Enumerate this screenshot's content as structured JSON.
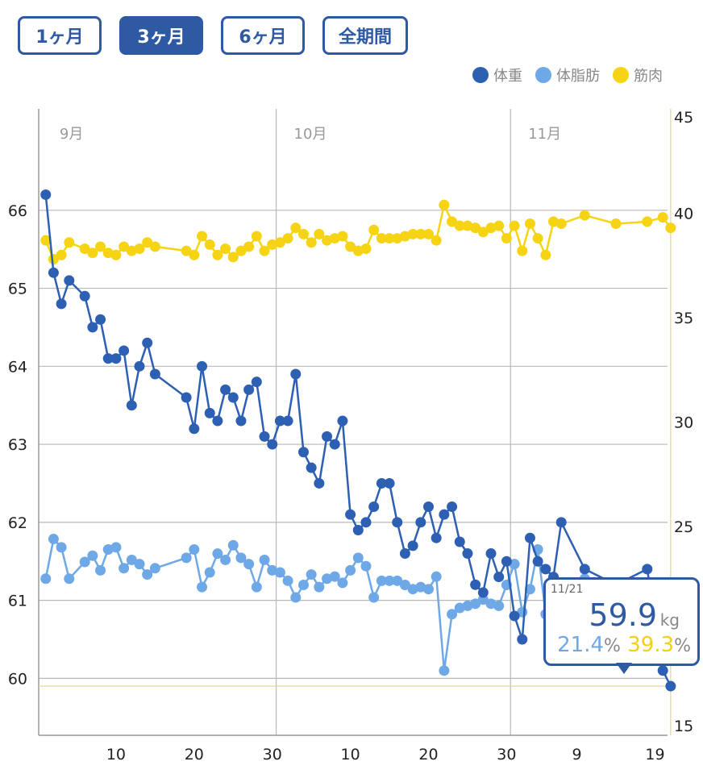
{
  "range_buttons": [
    {
      "label": "1ヶ月",
      "active": false
    },
    {
      "label": "3ヶ月",
      "active": true
    },
    {
      "label": "6ヶ月",
      "active": false
    },
    {
      "label": "全期間",
      "active": false
    }
  ],
  "legend": [
    {
      "label": "体重",
      "color": "#2d5fb3"
    },
    {
      "label": "体脂肪",
      "color": "#6fa8e6"
    },
    {
      "label": "筋肉",
      "color": "#f6d414"
    }
  ],
  "tooltip": {
    "date": "11/21",
    "weight": "59.9",
    "weight_unit": "kg",
    "fat": "21.4",
    "muscle": "39.3",
    "pct_unit": "%"
  },
  "chart_data": {
    "type": "line",
    "month_labels": [
      {
        "label": "9月",
        "day": 1
      },
      {
        "label": "10月",
        "day": 31
      },
      {
        "label": "11月",
        "day": 61
      }
    ],
    "x_tick_labels": [
      {
        "label": "10",
        "day": 10
      },
      {
        "label": "20",
        "day": 20
      },
      {
        "label": "30",
        "day": 30
      },
      {
        "label": "10",
        "day": 40
      },
      {
        "label": "20",
        "day": 50
      },
      {
        "label": "30",
        "day": 60
      },
      {
        "label": "9",
        "day": 69
      },
      {
        "label": "19",
        "day": 79
      }
    ],
    "x_range": [
      0.1,
      80.6
    ],
    "y_left": {
      "ticks": [
        60,
        61,
        62,
        63,
        64,
        65,
        66
      ],
      "range": [
        59.27,
        67.3
      ]
    },
    "y_right": {
      "ticks": [
        15,
        20,
        25,
        30,
        35,
        40,
        45
      ],
      "range": [
        15,
        45
      ]
    },
    "target_weight": 59.9,
    "series": [
      {
        "name": "体重",
        "axis": "left",
        "color": "#2d5fb3",
        "points": [
          [
            1,
            66.2
          ],
          [
            2,
            65.2
          ],
          [
            3,
            64.8
          ],
          [
            4,
            65.1
          ],
          [
            6,
            64.9
          ],
          [
            7,
            64.5
          ],
          [
            8,
            64.6
          ],
          [
            9,
            64.1
          ],
          [
            10,
            64.1
          ],
          [
            11,
            64.2
          ],
          [
            12,
            63.5
          ],
          [
            13,
            64.0
          ],
          [
            14,
            64.3
          ],
          [
            15,
            63.9
          ],
          [
            19,
            63.6
          ],
          [
            20,
            63.2
          ],
          [
            21,
            64.0
          ],
          [
            22,
            63.4
          ],
          [
            23,
            63.3
          ],
          [
            24,
            63.7
          ],
          [
            25,
            63.6
          ],
          [
            26,
            63.3
          ],
          [
            27,
            63.7
          ],
          [
            28,
            63.8
          ],
          [
            29,
            63.1
          ],
          [
            30,
            63.0
          ],
          [
            31,
            63.3
          ],
          [
            32,
            63.3
          ],
          [
            33,
            63.9
          ],
          [
            34,
            62.9
          ],
          [
            35,
            62.7
          ],
          [
            36,
            62.5
          ],
          [
            37,
            63.1
          ],
          [
            38,
            63.0
          ],
          [
            39,
            63.3
          ],
          [
            40,
            62.1
          ],
          [
            41,
            61.9
          ],
          [
            42,
            62.0
          ],
          [
            43,
            62.2
          ],
          [
            44,
            62.5
          ],
          [
            45,
            62.5
          ],
          [
            46,
            62.0
          ],
          [
            47,
            61.6
          ],
          [
            48,
            61.7
          ],
          [
            49,
            62.0
          ],
          [
            50,
            62.2
          ],
          [
            51,
            61.8
          ],
          [
            52,
            62.1
          ],
          [
            53,
            62.2
          ],
          [
            54,
            61.75
          ],
          [
            55,
            61.6
          ],
          [
            56,
            61.2
          ],
          [
            57,
            61.1
          ],
          [
            58,
            61.6
          ],
          [
            59,
            61.3
          ],
          [
            60,
            61.5
          ],
          [
            61,
            60.8
          ],
          [
            62,
            60.5
          ],
          [
            63,
            61.8
          ],
          [
            64,
            61.5
          ],
          [
            65,
            61.4
          ],
          [
            66,
            61.3
          ],
          [
            67,
            62.0
          ],
          [
            70,
            61.4
          ],
          [
            74,
            61.2
          ],
          [
            78,
            61.4
          ],
          [
            80,
            60.1
          ],
          [
            81,
            59.9
          ]
        ]
      },
      {
        "name": "体脂肪",
        "axis": "right",
        "color": "#6fa8e6",
        "points": [
          [
            1,
            22.5
          ],
          [
            2,
            24.4
          ],
          [
            3,
            24.0
          ],
          [
            4,
            22.5
          ],
          [
            6,
            23.3
          ],
          [
            7,
            23.6
          ],
          [
            8,
            22.9
          ],
          [
            9,
            23.9
          ],
          [
            10,
            24.0
          ],
          [
            11,
            23.0
          ],
          [
            12,
            23.4
          ],
          [
            13,
            23.2
          ],
          [
            14,
            22.7
          ],
          [
            15,
            23.0
          ],
          [
            19,
            23.5
          ],
          [
            20,
            23.9
          ],
          [
            21,
            22.1
          ],
          [
            22,
            22.8
          ],
          [
            23,
            23.7
          ],
          [
            24,
            23.4
          ],
          [
            25,
            24.1
          ],
          [
            26,
            23.5
          ],
          [
            27,
            23.2
          ],
          [
            28,
            22.1
          ],
          [
            29,
            23.4
          ],
          [
            30,
            22.9
          ],
          [
            31,
            22.8
          ],
          [
            32,
            22.4
          ],
          [
            33,
            21.6
          ],
          [
            34,
            22.2
          ],
          [
            35,
            22.7
          ],
          [
            36,
            22.1
          ],
          [
            37,
            22.5
          ],
          [
            38,
            22.6
          ],
          [
            39,
            22.3
          ],
          [
            40,
            22.9
          ],
          [
            41,
            23.5
          ],
          [
            42,
            23.1
          ],
          [
            43,
            21.6
          ],
          [
            44,
            22.4
          ],
          [
            45,
            22.4
          ],
          [
            46,
            22.4
          ],
          [
            47,
            22.2
          ],
          [
            48,
            22.0
          ],
          [
            49,
            22.1
          ],
          [
            50,
            22.0
          ],
          [
            51,
            22.6
          ],
          [
            52,
            18.1
          ],
          [
            53,
            20.8
          ],
          [
            54,
            21.1
          ],
          [
            55,
            21.2
          ],
          [
            56,
            21.3
          ],
          [
            57,
            21.5
          ],
          [
            58,
            21.3
          ],
          [
            59,
            21.2
          ],
          [
            60,
            22.2
          ],
          [
            61,
            23.2
          ],
          [
            62,
            20.9
          ],
          [
            63,
            22.0
          ],
          [
            64,
            23.9
          ],
          [
            65,
            20.8
          ],
          [
            66,
            21.0
          ],
          [
            67,
            21.0
          ],
          [
            70,
            22.5
          ],
          [
            74,
            21.5
          ],
          [
            78,
            21.5
          ],
          [
            80,
            21.4
          ],
          [
            81,
            21.4
          ]
        ]
      },
      {
        "name": "筋肉",
        "axis": "right",
        "color": "#f6d414",
        "points": [
          [
            1,
            38.7
          ],
          [
            2,
            37.8
          ],
          [
            3,
            38.0
          ],
          [
            4,
            38.6
          ],
          [
            6,
            38.3
          ],
          [
            7,
            38.1
          ],
          [
            8,
            38.4
          ],
          [
            9,
            38.1
          ],
          [
            10,
            38.0
          ],
          [
            11,
            38.4
          ],
          [
            12,
            38.2
          ],
          [
            13,
            38.3
          ],
          [
            14,
            38.6
          ],
          [
            15,
            38.4
          ],
          [
            19,
            38.2
          ],
          [
            20,
            38.0
          ],
          [
            21,
            38.9
          ],
          [
            22,
            38.5
          ],
          [
            23,
            38.0
          ],
          [
            24,
            38.3
          ],
          [
            25,
            37.9
          ],
          [
            26,
            38.2
          ],
          [
            27,
            38.4
          ],
          [
            28,
            38.9
          ],
          [
            29,
            38.2
          ],
          [
            30,
            38.5
          ],
          [
            31,
            38.6
          ],
          [
            32,
            38.8
          ],
          [
            33,
            39.3
          ],
          [
            34,
            39.0
          ],
          [
            35,
            38.6
          ],
          [
            36,
            39.0
          ],
          [
            37,
            38.7
          ],
          [
            38,
            38.8
          ],
          [
            39,
            38.9
          ],
          [
            40,
            38.4
          ],
          [
            41,
            38.2
          ],
          [
            42,
            38.3
          ],
          [
            43,
            39.2
          ],
          [
            44,
            38.8
          ],
          [
            45,
            38.8
          ],
          [
            46,
            38.8
          ],
          [
            47,
            38.9
          ],
          [
            48,
            39.0
          ],
          [
            49,
            39.0
          ],
          [
            50,
            39.0
          ],
          [
            51,
            38.7
          ],
          [
            52,
            40.4
          ],
          [
            53,
            39.6
          ],
          [
            54,
            39.4
          ],
          [
            55,
            39.4
          ],
          [
            56,
            39.3
          ],
          [
            57,
            39.1
          ],
          [
            58,
            39.3
          ],
          [
            59,
            39.4
          ],
          [
            60,
            38.8
          ],
          [
            61,
            39.4
          ],
          [
            62,
            38.2
          ],
          [
            63,
            39.5
          ],
          [
            64,
            38.8
          ],
          [
            65,
            38.0
          ],
          [
            66,
            39.6
          ],
          [
            67,
            39.5
          ],
          [
            70,
            39.9
          ],
          [
            74,
            39.5
          ],
          [
            78,
            39.6
          ],
          [
            80,
            39.8
          ],
          [
            81,
            39.3
          ]
        ]
      }
    ]
  }
}
